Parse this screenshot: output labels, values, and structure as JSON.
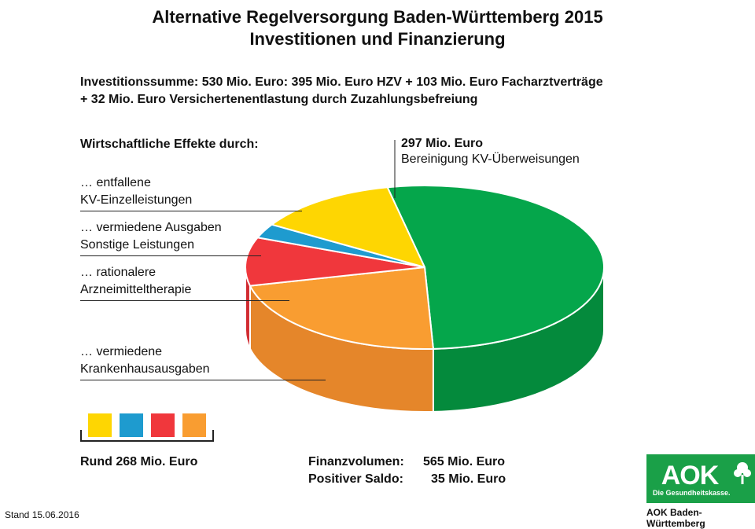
{
  "header": {
    "title_line1": "Alternative Regelversorgung Baden-Württemberg 2015",
    "title_line2": "Investitionen  und  Finanzierung"
  },
  "investment": {
    "line1": "Investitionssumme: 530 Mio. Euro: 395 Mio. Euro HZV + 103 Mio. Euro Facharztverträge",
    "line2": "+ 32 Mio. Euro Versichertenentlastung durch Zuzahlungsbefreiung"
  },
  "effects_heading": "Wirtschaftliche Effekte durch:",
  "labels": {
    "einzel_line1": "… entfallene",
    "einzel_line2": "KV-Einzelleistungen",
    "sonstige_line1": "… vermiedene Ausgaben",
    "sonstige_line2": "Sonstige Leistungen",
    "arznei_line1": "… rationalere",
    "arznei_line2": "Arzneimitteltherapie",
    "kh_line1": "… vermiedene",
    "kh_line2": "Krankenhausausgaben",
    "kv_value": "297 Mio. Euro",
    "kv_label": "Bereinigung KV-Überweisungen"
  },
  "summary": {
    "rund": "Rund 268 Mio. Euro",
    "finanz_label": "Finanzvolumen:",
    "finanz_value": "565 Mio. Euro",
    "saldo_label": "Positiver Saldo:",
    "saldo_value": "35 Mio. Euro"
  },
  "footer": {
    "stand": "Stand 15.06.2016",
    "logo": "AOK",
    "logo_tagline": "Die Gesundheitskasse.",
    "org": "AOK Baden-Württemberg"
  },
  "colors": {
    "green": "#05a64b",
    "green_dark": "#048a3c",
    "orange": "#f99d31",
    "orange_dark": "#e5862a",
    "red": "#f0373c",
    "red_dark": "#d12a30",
    "blue": "#1e9bcf",
    "yellow": "#fed602"
  },
  "chart_data": {
    "type": "pie",
    "title": "Alternative Regelversorgung Baden-Württemberg 2015 – Investitionen und Finanzierung",
    "unit": "Mio. Euro",
    "series": [
      {
        "name": "Bereinigung KV-Überweisungen",
        "value": 297,
        "color": "#05a64b"
      },
      {
        "name": "vermiedene Krankenhausausgaben",
        "value": 125,
        "color": "#f99d31"
      },
      {
        "name": "rationalere Arzneimitteltherapie",
        "value": 54,
        "color": "#f0373c"
      },
      {
        "name": "vermiedene Ausgaben Sonstige Leistungen",
        "value": 16,
        "color": "#1e9bcf"
      },
      {
        "name": "entfallene KV-Einzelleistungen",
        "value": 73,
        "color": "#fed602"
      }
    ],
    "legend": "swatches bottom-left",
    "grid": false
  }
}
